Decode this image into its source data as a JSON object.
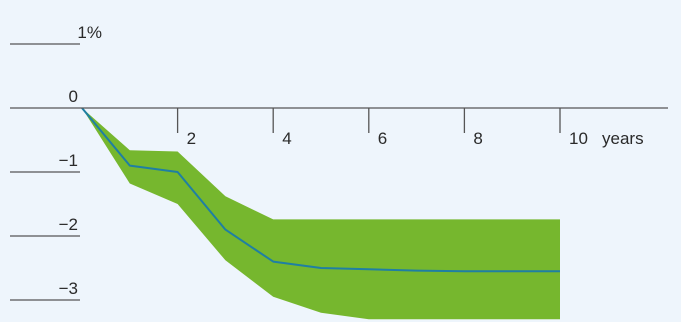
{
  "chart_data": {
    "type": "area",
    "title": "",
    "xlabel": "years",
    "ylabel": "",
    "xlim": [
      0,
      10
    ],
    "ylim": [
      -3,
      1
    ],
    "x_ticks": [
      {
        "value": 2,
        "label": "2"
      },
      {
        "value": 4,
        "label": "4"
      },
      {
        "value": 6,
        "label": "6"
      },
      {
        "value": 8,
        "label": "8"
      },
      {
        "value": 10,
        "label": "10"
      }
    ],
    "y_ticks": [
      {
        "value": 1,
        "label": "1%"
      },
      {
        "value": 0,
        "label": "0"
      },
      {
        "value": -1,
        "label": "−1"
      },
      {
        "value": -2,
        "label": "−2"
      },
      {
        "value": -3,
        "label": "−3"
      }
    ],
    "x_unit_label": "years",
    "colors": {
      "band": "#76b72e",
      "line": "#1f7fa3",
      "axis": "#555555",
      "background": "#eef5fc"
    },
    "series": [
      {
        "kind": "line",
        "x": [
          0,
          1,
          2,
          3,
          4,
          5,
          6,
          7,
          8,
          9,
          10
        ],
        "values": [
          0,
          -0.9,
          -1.0,
          -1.9,
          -2.4,
          -2.5,
          -2.52,
          -2.54,
          -2.55,
          -2.55,
          -2.55
        ]
      },
      {
        "kind": "band",
        "x": [
          0,
          1,
          2,
          3,
          4,
          5,
          6,
          7,
          8,
          9,
          10
        ],
        "upper": [
          0,
          -0.66,
          -0.68,
          -1.38,
          -1.74,
          -1.74,
          -1.74,
          -1.74,
          -1.74,
          -1.74,
          -1.74
        ],
        "lower": [
          0,
          -1.18,
          -1.5,
          -2.38,
          -2.95,
          -3.2,
          -3.3,
          -3.3,
          -3.3,
          -3.3,
          -3.3
        ]
      }
    ]
  }
}
